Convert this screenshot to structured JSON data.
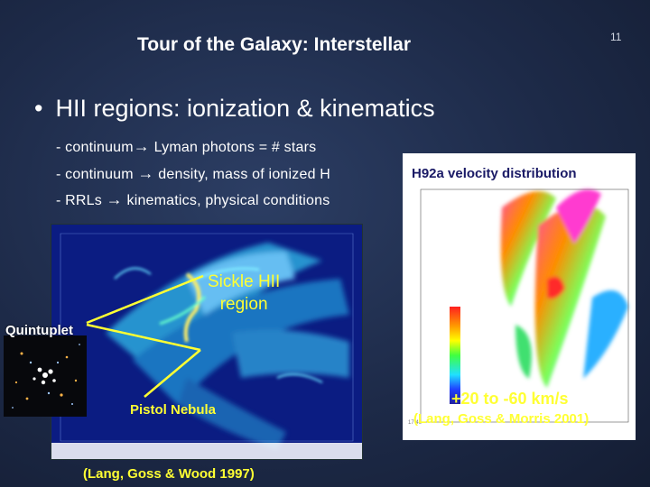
{
  "slide": {
    "title": "Tour of the Galaxy: Interstellar",
    "page_number": "11",
    "heading": "HII regions: ionization & kinematics",
    "bullet_glyph": "•",
    "bullets": [
      {
        "prefix": "- continuum",
        "arrow": "→",
        "suffix": " Lyman photons = # stars"
      },
      {
        "prefix": "- continuum ",
        "arrow": "→",
        "suffix": " density, mass of ionized H"
      },
      {
        "prefix": "- RRLs ",
        "arrow": "→",
        "suffix": " kinematics, physical conditions"
      }
    ]
  },
  "left_figure": {
    "sickle_label_line1": "Sickle HII",
    "sickle_label_line2": "region",
    "quintuplet_label": "Quintuplet",
    "pistol_label": "Pistol Nebula",
    "credit": "(Lang, Goss & Wood 1997)"
  },
  "right_figure": {
    "title": "H92a velocity distribution",
    "velocity_range": "+20 to -60 km/s",
    "credit": "(Lang, Goss & Morris 2001)"
  },
  "colors": {
    "background": "#1d2a48",
    "label_yellow": "#ffff33",
    "map_blue": "#0a1a7a"
  }
}
